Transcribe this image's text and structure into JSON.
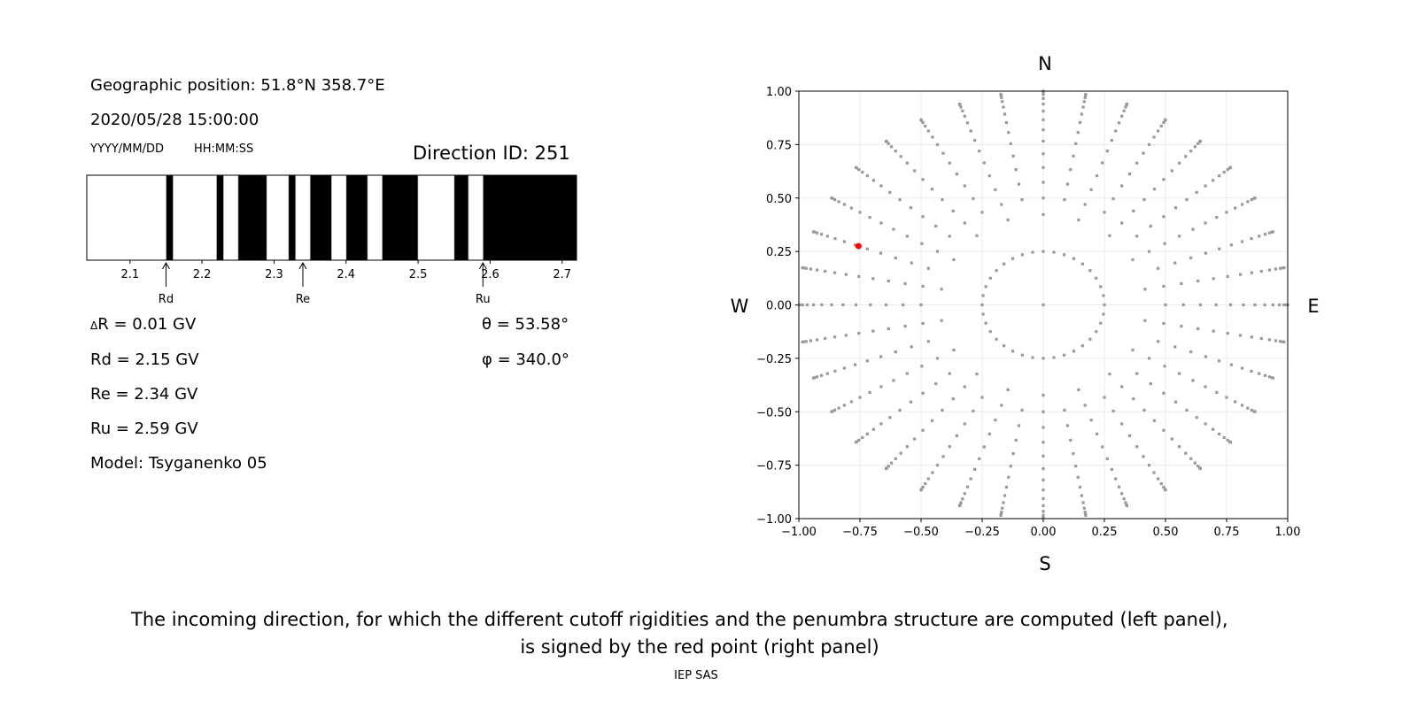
{
  "info": {
    "geo": "Geographic position: 51.8°N 358.7°E",
    "datetime": "2020/05/28 15:00:00",
    "date_fmt": "YYYY/MM/DD",
    "time_fmt": "HH:MM:SS",
    "direction": "Direction ID: 251",
    "dR": "R = 0.01 GV",
    "dR_symbol": "Δ",
    "Rd": "Rd = 2.15 GV",
    "Re": "Re = 2.34 GV",
    "Ru": "Ru = 2.59 GV",
    "model": "Model: Tsyganenko 05",
    "theta": "θ = 53.58°",
    "phi": "φ = 340.0°"
  },
  "caption": {
    "line1": "The incoming direction, for which the different cutoff rigidities and the penumbra structure are computed (left panel),",
    "line2": "is signed by the red point (right panel)",
    "credit": "IEP SAS"
  },
  "chart_data": [
    {
      "type": "bar",
      "xlim": [
        2.04,
        2.72
      ],
      "xticks": [
        "2.1",
        "2.2",
        "2.3",
        "2.4",
        "2.5",
        "2.6",
        "2.7"
      ],
      "forbidden_bands": [
        [
          2.15,
          2.16
        ],
        [
          2.22,
          2.23
        ],
        [
          2.25,
          2.29
        ],
        [
          2.32,
          2.33
        ],
        [
          2.35,
          2.38
        ],
        [
          2.4,
          2.43
        ],
        [
          2.45,
          2.5
        ],
        [
          2.55,
          2.57
        ],
        [
          2.59,
          2.72
        ]
      ],
      "markers": [
        {
          "label": "Rd",
          "x": 2.15
        },
        {
          "label": "Re",
          "x": 2.34
        },
        {
          "label": "Ru",
          "x": 2.59
        }
      ],
      "colors": {
        "forbidden": "#000000",
        "allowed": "#ffffff",
        "edge": "#cccccc"
      }
    },
    {
      "type": "scatter",
      "xlim": [
        -1,
        1
      ],
      "ylim": [
        -1,
        1
      ],
      "xticks": [
        "−1.00",
        "−0.75",
        "−0.50",
        "−0.25",
        "0.00",
        "0.25",
        "0.50",
        "0.75",
        "1.00"
      ],
      "yticks": [
        "−1.00",
        "−0.75",
        "−0.50",
        "−0.25",
        "0.00",
        "0.25",
        "0.50",
        "0.75",
        "1.00"
      ],
      "grid": true,
      "compass": {
        "N": "N",
        "S": "S",
        "W": "W",
        "E": "E"
      },
      "grid_points": {
        "inner_ring_radius": 0.25,
        "inner_ring_azimuth_step_deg": 10,
        "ray_azimuth_step_deg": 10,
        "zenith_deg_range": [
          25,
          90
        ],
        "zenith_step_deg": 5,
        "color": "#999999"
      },
      "selected_point": {
        "theta_deg": 53.58,
        "phi_deg": 340.0,
        "x": -0.756,
        "y": 0.275,
        "color": "#ff0000"
      }
    }
  ]
}
